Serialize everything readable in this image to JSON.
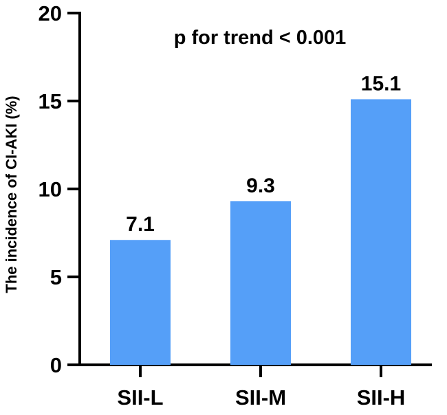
{
  "chart_data": {
    "type": "bar",
    "categories": [
      "SII-L",
      "SII-M",
      "SII-H"
    ],
    "values": [
      7.1,
      9.3,
      15.1
    ],
    "data_labels": [
      "7.1",
      "9.3",
      "15.1"
    ],
    "title": "",
    "xlabel": "",
    "ylabel": "The incidence of CI-AKI (%)",
    "ylim": [
      0,
      20
    ],
    "yticks": [
      0,
      5,
      10,
      15,
      20
    ],
    "annotation": "p for trend < 0.001",
    "bar_color": "#559ff8",
    "grid": false,
    "legend": "none"
  }
}
